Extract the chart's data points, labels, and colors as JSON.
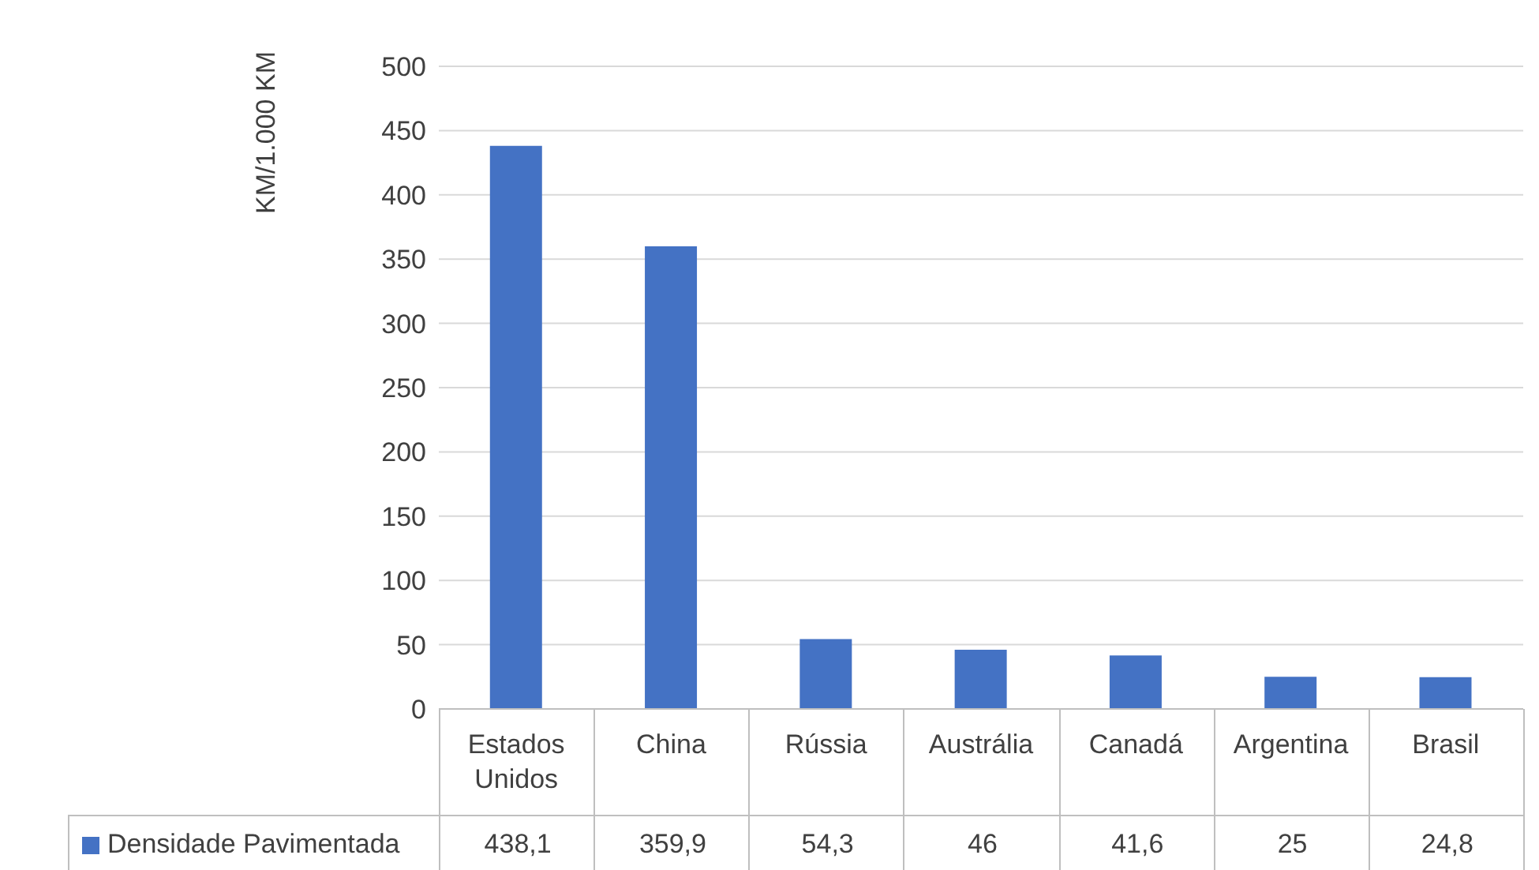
{
  "chart_data": {
    "type": "bar",
    "ylabel": "KM/1.000 KM",
    "categories": [
      "Estados Unidos",
      "China",
      "Rússia",
      "Austrália",
      "Canadá",
      "Argentina",
      "Brasil"
    ],
    "series": [
      {
        "name": "Densidade Pavimentada",
        "color": "#4472c4",
        "values": [
          438.1,
          359.9,
          54.3,
          46,
          41.6,
          25,
          24.8
        ],
        "value_labels": [
          "438,1",
          "359,9",
          "54,3",
          "46",
          "41,6",
          "25",
          "24,8"
        ]
      }
    ],
    "ylim": [
      0,
      500
    ],
    "yticks": [
      0,
      50,
      100,
      150,
      200,
      250,
      300,
      350,
      400,
      450,
      500
    ],
    "grid": "y",
    "legend": "bottom",
    "data_labels": true
  }
}
